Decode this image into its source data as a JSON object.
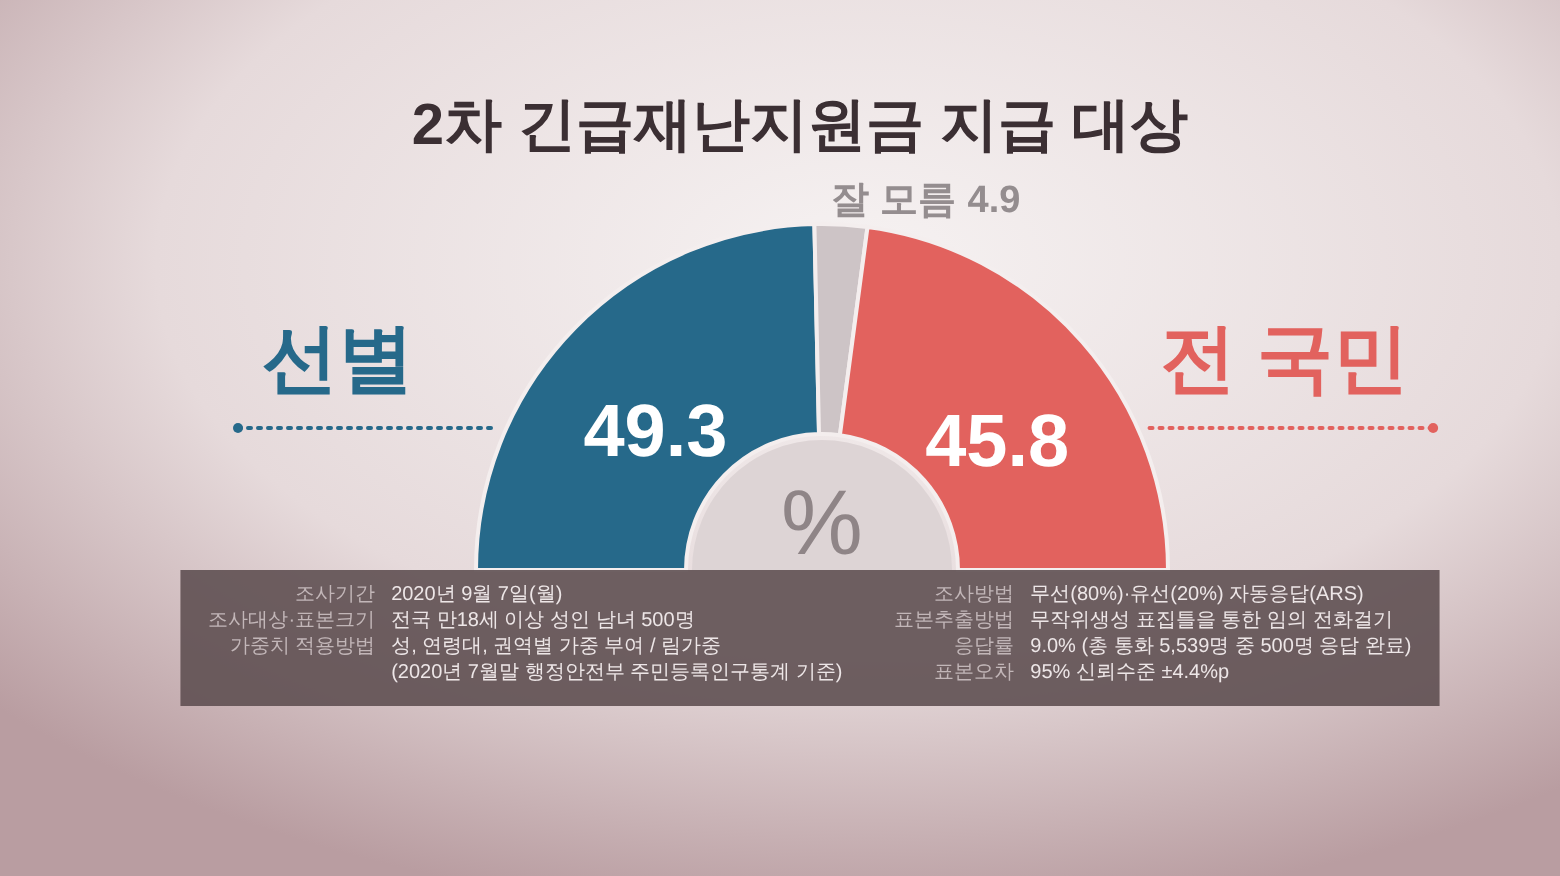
{
  "chart_data": {
    "type": "donut",
    "title": "2차 긴급재난지원금 지급 대상",
    "categories": [
      "선별",
      "잘 모름",
      "전 국민"
    ],
    "values": [
      49.3,
      4.9,
      45.8
    ],
    "colors": [
      "#26698a",
      "#cdc4c6",
      "#e2625e"
    ],
    "data_labels": true,
    "annotations": [
      "%",
      "조사기간",
      "2020년 9월 7일(월)",
      "조사대상·표본크기",
      "전국 만18세 이상 성인 남녀 500명",
      "가중치 적용방법",
      "성, 연령대, 권역별 가중 부여 / 림가중\n(2020년 7월말 행정안전부 주민등록인구통계 기준)",
      "조사방법",
      "무선(80%)·유선(20%) 자동응답(ARS)",
      "표본추출방법",
      "무작위생성 표집틀을 통한 임의 전화걸기",
      "응답률",
      "9.0% (총 통화 5,539명 중 500명 응답 완료)",
      "표본오차",
      "95% 신뢰수준 ±4.4%p"
    ]
  }
}
